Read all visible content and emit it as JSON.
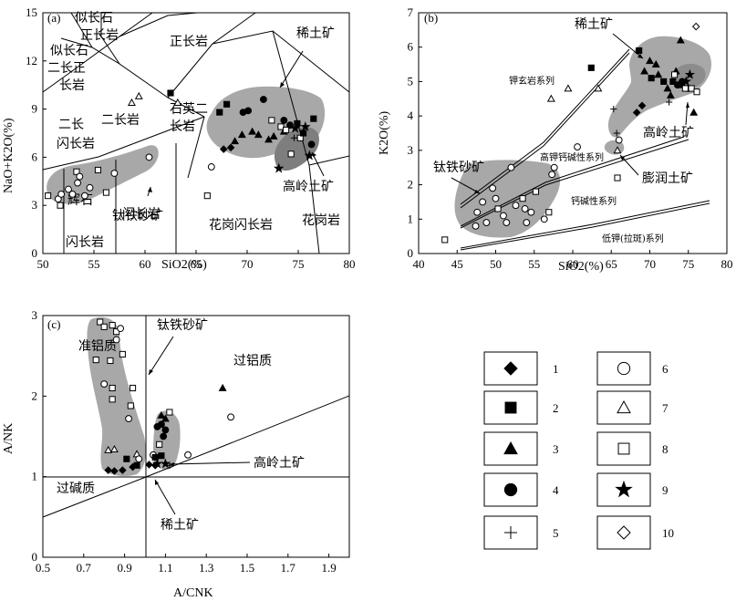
{
  "chart_data": [
    {
      "type": "scatter",
      "panel_label": "(a)",
      "xlabel": "SiO2(%)",
      "ylabel": "NaO+K2O(%)",
      "xlim": [
        50,
        80
      ],
      "ylim": [
        0,
        15
      ],
      "xticks": [
        "50",
        "55",
        "60",
        "65",
        "70",
        "75",
        "80"
      ],
      "yticks": [
        "0",
        "3",
        "6",
        "9",
        "12",
        "15"
      ],
      "field_labels": [
        "似长石",
        "正长岩",
        "似长石",
        "二长正",
        "长岩",
        "正长岩",
        "二长",
        "闪长岩",
        "二长岩",
        "石英二",
        "长岩",
        "辉石",
        "闪长岩",
        "闪长岩",
        "花岗闪长岩",
        "花岗岩"
      ],
      "annotations": [
        "钛铁砂矿",
        "稀土矿",
        "高岭土矿"
      ],
      "points": [
        {
          "s": 8,
          "x": 50.5,
          "y": 3.6
        },
        {
          "s": 6,
          "x": 51.5,
          "y": 3.4
        },
        {
          "s": 8,
          "x": 51.7,
          "y": 3.0
        },
        {
          "s": 6,
          "x": 51.8,
          "y": 3.7
        },
        {
          "s": 6,
          "x": 52.5,
          "y": 4.0
        },
        {
          "s": 6,
          "x": 52.9,
          "y": 3.7
        },
        {
          "s": 8,
          "x": 53.3,
          "y": 5.1
        },
        {
          "s": 6,
          "x": 53.4,
          "y": 4.4
        },
        {
          "s": 6,
          "x": 53.6,
          "y": 4.8
        },
        {
          "s": 6,
          "x": 54.1,
          "y": 3.6
        },
        {
          "s": 6,
          "x": 54.6,
          "y": 4.1
        },
        {
          "s": 8,
          "x": 55.4,
          "y": 5.2
        },
        {
          "s": 8,
          "x": 56.2,
          "y": 3.8
        },
        {
          "s": 6,
          "x": 57.0,
          "y": 5.0
        },
        {
          "s": 6,
          "x": 60.4,
          "y": 6.0
        },
        {
          "s": 7,
          "x": 58.7,
          "y": 9.4
        },
        {
          "s": 7,
          "x": 59.4,
          "y": 9.8
        },
        {
          "s": 7,
          "x": 63.2,
          "y": 9.4
        },
        {
          "s": 2,
          "x": 62.5,
          "y": 10.0
        },
        {
          "s": 6,
          "x": 66.5,
          "y": 5.4
        },
        {
          "s": 8,
          "x": 66.1,
          "y": 3.6
        },
        {
          "s": 2,
          "x": 68.0,
          "y": 9.3
        },
        {
          "s": 2,
          "x": 67.3,
          "y": 8.8
        },
        {
          "s": 4,
          "x": 69.6,
          "y": 8.8
        },
        {
          "s": 4,
          "x": 70.1,
          "y": 8.9
        },
        {
          "s": 4,
          "x": 71.6,
          "y": 9.6
        },
        {
          "s": 1,
          "x": 67.7,
          "y": 6.5
        },
        {
          "s": 1,
          "x": 68.4,
          "y": 6.6
        },
        {
          "s": 3,
          "x": 68.8,
          "y": 7.0
        },
        {
          "s": 3,
          "x": 69.5,
          "y": 7.4
        },
        {
          "s": 3,
          "x": 70.5,
          "y": 7.6
        },
        {
          "s": 3,
          "x": 71.1,
          "y": 7.4
        },
        {
          "s": 3,
          "x": 72.1,
          "y": 7.1
        },
        {
          "s": 3,
          "x": 72.6,
          "y": 7.3
        },
        {
          "s": 3,
          "x": 73.6,
          "y": 7.6
        },
        {
          "s": 8,
          "x": 72.4,
          "y": 8.3
        },
        {
          "s": 8,
          "x": 73.3,
          "y": 7.9
        },
        {
          "s": 8,
          "x": 73.8,
          "y": 7.7
        },
        {
          "s": 8,
          "x": 75.2,
          "y": 7.2
        },
        {
          "s": 8,
          "x": 74.3,
          "y": 6.2
        },
        {
          "s": 4,
          "x": 73.6,
          "y": 8.3
        },
        {
          "s": 4,
          "x": 74.2,
          "y": 8.0
        },
        {
          "s": 4,
          "x": 76.3,
          "y": 6.8
        },
        {
          "s": 2,
          "x": 74.9,
          "y": 8.1
        },
        {
          "s": 2,
          "x": 76.5,
          "y": 8.4
        },
        {
          "s": 2,
          "x": 75.5,
          "y": 7.5
        },
        {
          "s": 9,
          "x": 73.1,
          "y": 5.3
        },
        {
          "s": 9,
          "x": 74.7,
          "y": 7.8
        },
        {
          "s": 9,
          "x": 75.7,
          "y": 7.9
        },
        {
          "s": 9,
          "x": 76.1,
          "y": 6.1
        },
        {
          "s": 5,
          "x": 74.6,
          "y": 7.2
        }
      ]
    },
    {
      "type": "scatter",
      "panel_label": "(b)",
      "xlabel": "SiO2(%)",
      "ylabel": "K2O(%)",
      "xlim": [
        40,
        80
      ],
      "ylim": [
        0,
        7
      ],
      "xticks": [
        "40",
        "45",
        "50",
        "55",
        "60",
        "65",
        "70",
        "75",
        "80"
      ],
      "yticks": [
        "0",
        "1",
        "2",
        "3",
        "4",
        "5",
        "6",
        "7"
      ],
      "series_labels": [
        "钾玄岩系列",
        "高钾钙碱性系列",
        "钙碱性系列",
        "低钾(拉斑)系列"
      ],
      "annotations": [
        "稀土矿",
        "钛铁砂矿",
        "高岭土矿",
        "膨润土矿"
      ],
      "points": [
        {
          "s": 6,
          "x": 47.4,
          "y": 0.8
        },
        {
          "s": 6,
          "x": 47.6,
          "y": 1.2
        },
        {
          "s": 6,
          "x": 48.3,
          "y": 1.5
        },
        {
          "s": 6,
          "x": 48.8,
          "y": 0.9
        },
        {
          "s": 6,
          "x": 49.6,
          "y": 1.9
        },
        {
          "s": 6,
          "x": 50.0,
          "y": 1.6
        },
        {
          "s": 8,
          "x": 50.3,
          "y": 1.3
        },
        {
          "s": 6,
          "x": 51.0,
          "y": 1.1
        },
        {
          "s": 6,
          "x": 51.4,
          "y": 0.9
        },
        {
          "s": 6,
          "x": 52.0,
          "y": 2.5
        },
        {
          "s": 6,
          "x": 52.6,
          "y": 1.4
        },
        {
          "s": 8,
          "x": 53.5,
          "y": 1.6
        },
        {
          "s": 6,
          "x": 53.8,
          "y": 1.3
        },
        {
          "s": 6,
          "x": 54.0,
          "y": 0.9
        },
        {
          "s": 6,
          "x": 54.6,
          "y": 1.2
        },
        {
          "s": 8,
          "x": 55.2,
          "y": 1.8
        },
        {
          "s": 6,
          "x": 56.3,
          "y": 1.0
        },
        {
          "s": 8,
          "x": 56.9,
          "y": 1.2
        },
        {
          "s": 6,
          "x": 57.3,
          "y": 2.3
        },
        {
          "s": 6,
          "x": 57.6,
          "y": 2.5
        },
        {
          "s": 8,
          "x": 43.4,
          "y": 0.4
        },
        {
          "s": 6,
          "x": 60.6,
          "y": 3.1
        },
        {
          "s": 7,
          "x": 59.4,
          "y": 4.8
        },
        {
          "s": 7,
          "x": 57.2,
          "y": 4.5
        },
        {
          "s": 7,
          "x": 63.3,
          "y": 4.8
        },
        {
          "s": 7,
          "x": 65.8,
          "y": 3.0
        },
        {
          "s": 2,
          "x": 62.4,
          "y": 5.4
        },
        {
          "s": 8,
          "x": 65.8,
          "y": 2.2
        },
        {
          "s": 5,
          "x": 65.3,
          "y": 4.2
        },
        {
          "s": 5,
          "x": 65.7,
          "y": 3.5
        },
        {
          "s": 6,
          "x": 66.0,
          "y": 3.3
        },
        {
          "s": 1,
          "x": 68.3,
          "y": 4.1
        },
        {
          "s": 1,
          "x": 69.0,
          "y": 4.3
        },
        {
          "s": 2,
          "x": 68.6,
          "y": 5.9
        },
        {
          "s": 2,
          "x": 70.2,
          "y": 5.1
        },
        {
          "s": 2,
          "x": 71.8,
          "y": 5.0
        },
        {
          "s": 2,
          "x": 73.0,
          "y": 5.0
        },
        {
          "s": 3,
          "x": 69.3,
          "y": 5.3
        },
        {
          "s": 3,
          "x": 70.0,
          "y": 5.6
        },
        {
          "s": 3,
          "x": 70.8,
          "y": 5.5
        },
        {
          "s": 3,
          "x": 71.1,
          "y": 5.2
        },
        {
          "s": 3,
          "x": 72.3,
          "y": 4.8
        },
        {
          "s": 3,
          "x": 72.7,
          "y": 4.6
        },
        {
          "s": 3,
          "x": 73.4,
          "y": 5.3
        },
        {
          "s": 3,
          "x": 74.3,
          "y": 4.9
        },
        {
          "s": 3,
          "x": 75.7,
          "y": 4.1
        },
        {
          "s": 3,
          "x": 74.0,
          "y": 6.2
        },
        {
          "s": 4,
          "x": 73.6,
          "y": 4.9
        },
        {
          "s": 4,
          "x": 74.2,
          "y": 5.0
        },
        {
          "s": 4,
          "x": 75.0,
          "y": 4.8
        },
        {
          "s": 8,
          "x": 73.2,
          "y": 5.2
        },
        {
          "s": 8,
          "x": 74.6,
          "y": 4.8
        },
        {
          "s": 8,
          "x": 75.4,
          "y": 4.8
        },
        {
          "s": 8,
          "x": 76.1,
          "y": 4.7
        },
        {
          "s": 9,
          "x": 74.7,
          "y": 5.0
        },
        {
          "s": 9,
          "x": 75.2,
          "y": 5.2
        },
        {
          "s": 5,
          "x": 72.5,
          "y": 4.4
        },
        {
          "s": 10,
          "x": 76.0,
          "y": 6.6
        }
      ]
    },
    {
      "type": "scatter",
      "panel_label": "(c)",
      "xlabel": "A/CNK",
      "ylabel": "A/NK",
      "xlim": [
        0.5,
        2.0
      ],
      "ylim": [
        0,
        3
      ],
      "xticks": [
        "0.5",
        "0.7",
        "0.9",
        "1.1",
        "1.3",
        "1.5",
        "1.7",
        "1.9"
      ],
      "yticks": [
        "0",
        "1",
        "2",
        "3"
      ],
      "field_labels": [
        "准铝质",
        "过铝质",
        "过碱质"
      ],
      "annotations": [
        "钛铁砂矿",
        "高岭土矿",
        "稀土矿"
      ],
      "points": [
        {
          "s": 8,
          "x": 0.78,
          "y": 2.92
        },
        {
          "s": 8,
          "x": 0.8,
          "y": 2.86
        },
        {
          "s": 8,
          "x": 0.84,
          "y": 2.88
        },
        {
          "s": 8,
          "x": 0.86,
          "y": 2.8
        },
        {
          "s": 6,
          "x": 0.88,
          "y": 2.84
        },
        {
          "s": 8,
          "x": 0.89,
          "y": 2.52
        },
        {
          "s": 8,
          "x": 0.76,
          "y": 2.45
        },
        {
          "s": 6,
          "x": 0.86,
          "y": 2.7
        },
        {
          "s": 8,
          "x": 0.83,
          "y": 2.44
        },
        {
          "s": 8,
          "x": 0.94,
          "y": 2.1
        },
        {
          "s": 8,
          "x": 0.93,
          "y": 1.88
        },
        {
          "s": 6,
          "x": 0.92,
          "y": 1.72
        },
        {
          "s": 8,
          "x": 0.84,
          "y": 2.1
        },
        {
          "s": 6,
          "x": 0.8,
          "y": 2.15
        },
        {
          "s": 8,
          "x": 0.84,
          "y": 1.96
        },
        {
          "s": 7,
          "x": 0.82,
          "y": 1.33
        },
        {
          "s": 7,
          "x": 0.85,
          "y": 1.34
        },
        {
          "s": 7,
          "x": 0.96,
          "y": 1.28
        },
        {
          "s": 6,
          "x": 0.97,
          "y": 1.22
        },
        {
          "s": 6,
          "x": 1.04,
          "y": 1.27
        },
        {
          "s": 2,
          "x": 0.96,
          "y": 1.14
        },
        {
          "s": 2,
          "x": 0.91,
          "y": 1.22
        },
        {
          "s": 1,
          "x": 0.82,
          "y": 1.08
        },
        {
          "s": 1,
          "x": 0.85,
          "y": 1.07
        },
        {
          "s": 1,
          "x": 0.89,
          "y": 1.08
        },
        {
          "s": 1,
          "x": 0.94,
          "y": 1.12
        },
        {
          "s": 1,
          "x": 1.02,
          "y": 1.15
        },
        {
          "s": 1,
          "x": 1.05,
          "y": 1.14
        },
        {
          "s": 4,
          "x": 1.08,
          "y": 1.65
        },
        {
          "s": 4,
          "x": 1.1,
          "y": 1.58
        },
        {
          "s": 4,
          "x": 1.09,
          "y": 1.5
        },
        {
          "s": 4,
          "x": 1.06,
          "y": 1.62
        },
        {
          "s": 3,
          "x": 1.1,
          "y": 1.72
        },
        {
          "s": 3,
          "x": 1.08,
          "y": 1.76
        },
        {
          "s": 8,
          "x": 1.12,
          "y": 1.8
        },
        {
          "s": 8,
          "x": 1.07,
          "y": 1.4
        },
        {
          "s": 2,
          "x": 1.05,
          "y": 1.24
        },
        {
          "s": 2,
          "x": 1.08,
          "y": 1.26
        },
        {
          "s": 9,
          "x": 1.06,
          "y": 1.16
        },
        {
          "s": 9,
          "x": 1.1,
          "y": 1.16
        },
        {
          "s": 5,
          "x": 1.12,
          "y": 1.14
        },
        {
          "s": 3,
          "x": 1.38,
          "y": 2.1
        },
        {
          "s": 6,
          "x": 1.42,
          "y": 1.74
        },
        {
          "s": 6,
          "x": 1.21,
          "y": 1.27
        }
      ]
    }
  ],
  "legend": {
    "items": [
      {
        "num": "1",
        "shape": "diamond-filled"
      },
      {
        "num": "2",
        "shape": "square-filled"
      },
      {
        "num": "3",
        "shape": "triangle-filled"
      },
      {
        "num": "4",
        "shape": "circle-filled"
      },
      {
        "num": "5",
        "shape": "plus"
      },
      {
        "num": "6",
        "shape": "circle-open"
      },
      {
        "num": "7",
        "shape": "triangle-open"
      },
      {
        "num": "8",
        "shape": "square-open"
      },
      {
        "num": "9",
        "shape": "star-filled"
      },
      {
        "num": "10",
        "shape": "diamond-open"
      }
    ]
  }
}
